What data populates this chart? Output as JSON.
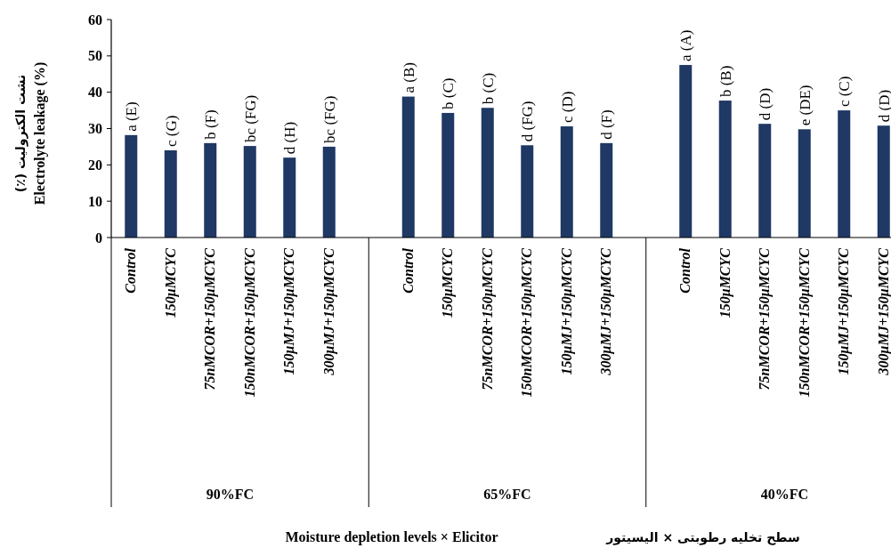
{
  "chart_data": {
    "type": "bar",
    "ylabel": "Electrolyte leakage (%)",
    "categories": [
      "Control",
      "150μMCYC",
      "75nMCOR+150μMCYC",
      "150nMCOR+150μMCYC",
      "150μMJ+150μMCYC",
      "300μMJ+150μMCYC",
      null,
      "Control",
      "150μMCYC",
      "75nMCOR+150μMCYC",
      "150nMCOR+150μMCYC",
      "150μMJ+150μMCYC",
      "300μMJ+150μMCYC",
      null,
      "Control",
      "150μMCYC",
      "75nMCOR+150μMCYC",
      "150nMCOR+150μMCYC",
      "150μMJ+150μMCYC",
      "300μMJ+150μMCYC"
    ],
    "values": [
      28.2,
      24,
      26,
      25.2,
      22,
      25,
      null,
      38.8,
      34.3,
      35.7,
      25.4,
      30.6,
      26,
      null,
      47.5,
      37.7,
      31.3,
      29.8,
      35,
      30.8
    ],
    "value_labels": [
      "a (E)",
      "c (G)",
      "b (F)",
      "bc (FG)",
      "d (H)",
      "bc (FG)",
      null,
      "a (B)",
      "b (C)",
      "b (C)",
      "d (FG)",
      "c (D)",
      "d (F)",
      null,
      "a (A)",
      "b (B)",
      "d (D)",
      "e (DE)",
      "c (C)",
      "d (D)"
    ],
    "color": "#1f3864",
    "ylim": [
      0,
      60
    ],
    "yticks": [
      0,
      10,
      20,
      30,
      40,
      50,
      60
    ],
    "annotations": [
      "90%FC",
      "65%FC",
      "40%FC",
      "نشت الکترولیت (٪)",
      "Moisture depletion levels × Elicitor",
      "سطح تخلیه رطوبتی × الیسیتور"
    ]
  }
}
